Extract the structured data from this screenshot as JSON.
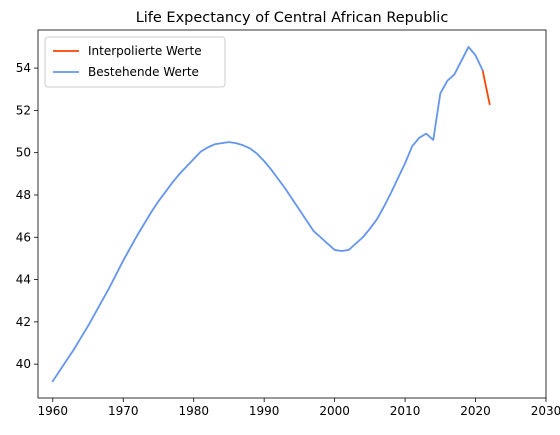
{
  "chart_data": {
    "type": "line",
    "title": "Life Expectancy of Central African Republic",
    "xlabel": "",
    "ylabel": "",
    "xlim": [
      1957.9,
      2030
    ],
    "ylim": [
      38.4,
      55.8
    ],
    "xticks": [
      1960,
      1970,
      1980,
      1990,
      2000,
      2010,
      2020,
      2030
    ],
    "yticks": [
      40,
      42,
      44,
      46,
      48,
      50,
      52,
      54
    ],
    "grid": false,
    "legend_position": "top-left",
    "series": [
      {
        "name": "Interpolierte Werte",
        "color": "#ff4500",
        "x": [
          2021,
          2022
        ],
        "y": [
          53.9,
          52.3
        ]
      },
      {
        "name": "Bestehende Werte",
        "color": "#6495ed",
        "x": [
          1960,
          1961,
          1962,
          1963,
          1964,
          1965,
          1966,
          1967,
          1968,
          1969,
          1970,
          1971,
          1972,
          1973,
          1974,
          1975,
          1976,
          1977,
          1978,
          1979,
          1980,
          1981,
          1982,
          1983,
          1984,
          1985,
          1986,
          1987,
          1988,
          1989,
          1990,
          1991,
          1992,
          1993,
          1994,
          1995,
          1996,
          1997,
          1998,
          1999,
          2000,
          2001,
          2002,
          2003,
          2004,
          2005,
          2006,
          2007,
          2008,
          2009,
          2010,
          2011,
          2012,
          2013,
          2014,
          2015,
          2016,
          2017,
          2018,
          2019,
          2020,
          2021
        ],
        "y": [
          39.2,
          39.7,
          40.2,
          40.7,
          41.25,
          41.8,
          42.4,
          43.0,
          43.6,
          44.25,
          44.9,
          45.5,
          46.1,
          46.65,
          47.2,
          47.7,
          48.15,
          48.6,
          49.0,
          49.35,
          49.7,
          50.05,
          50.25,
          50.4,
          50.45,
          50.5,
          50.45,
          50.35,
          50.2,
          49.95,
          49.6,
          49.2,
          48.75,
          48.3,
          47.8,
          47.3,
          46.8,
          46.3,
          46.0,
          45.7,
          45.4,
          45.35,
          45.4,
          45.7,
          46.0,
          46.4,
          46.85,
          47.45,
          48.1,
          48.8,
          49.5,
          50.3,
          50.7,
          50.9,
          50.6,
          52.8,
          53.4,
          53.7,
          54.35,
          55.0,
          54.6,
          53.9
        ]
      }
    ]
  }
}
